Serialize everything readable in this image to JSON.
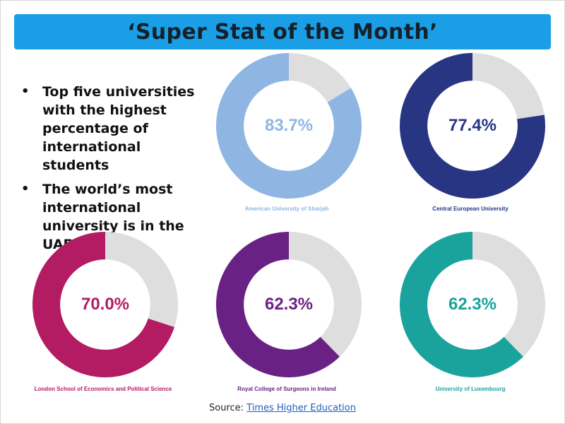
{
  "title": "‘Super Stat of the Month’",
  "colors": {
    "title_bar": "#1a9fe6",
    "track": "#dedede"
  },
  "bullets": [
    "Top five universities with the highest percentage of international students",
    "The world’s most international university is in the UAE"
  ],
  "source": {
    "prefix": "Source:",
    "link_text": "Times Higher Education"
  },
  "chart_data": [
    {
      "type": "pie",
      "label": "American University of Sharjah",
      "value": 83.7,
      "value_text": "83.7%",
      "color": "#8fb6e3"
    },
    {
      "type": "pie",
      "label": "Central European University",
      "value": 77.4,
      "value_text": "77.4%",
      "color": "#283583"
    },
    {
      "type": "pie",
      "label": "London School of Economics and Political Science",
      "value": 70.0,
      "value_text": "70.0%",
      "color": "#b31b63"
    },
    {
      "type": "pie",
      "label": "Royal College of Surgeons in Ireland",
      "value": 62.3,
      "value_text": "62.3%",
      "color": "#6a2185"
    },
    {
      "type": "pie",
      "label": "University of Luxembourg",
      "value": 62.3,
      "value_text": "62.3%",
      "color": "#1aa39c"
    }
  ]
}
